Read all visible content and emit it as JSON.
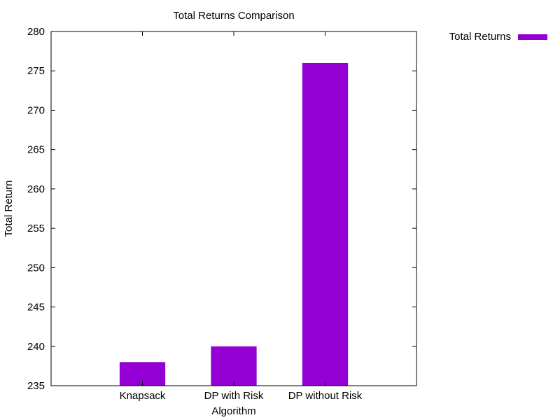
{
  "chart_data": {
    "type": "bar",
    "title": "Total Returns Comparison",
    "xlabel": "Algorithm",
    "ylabel": "Total Return",
    "categories": [
      "Knapsack",
      "DP with Risk",
      "DP without Risk"
    ],
    "series": [
      {
        "name": "Total Returns",
        "color": "#9400d3",
        "values": [
          238,
          240,
          276
        ]
      }
    ],
    "ylim": [
      235,
      280
    ],
    "yticks": [
      235,
      240,
      245,
      250,
      255,
      260,
      265,
      270,
      275,
      280
    ],
    "grid": false,
    "legend_position": "outside-top-right"
  }
}
